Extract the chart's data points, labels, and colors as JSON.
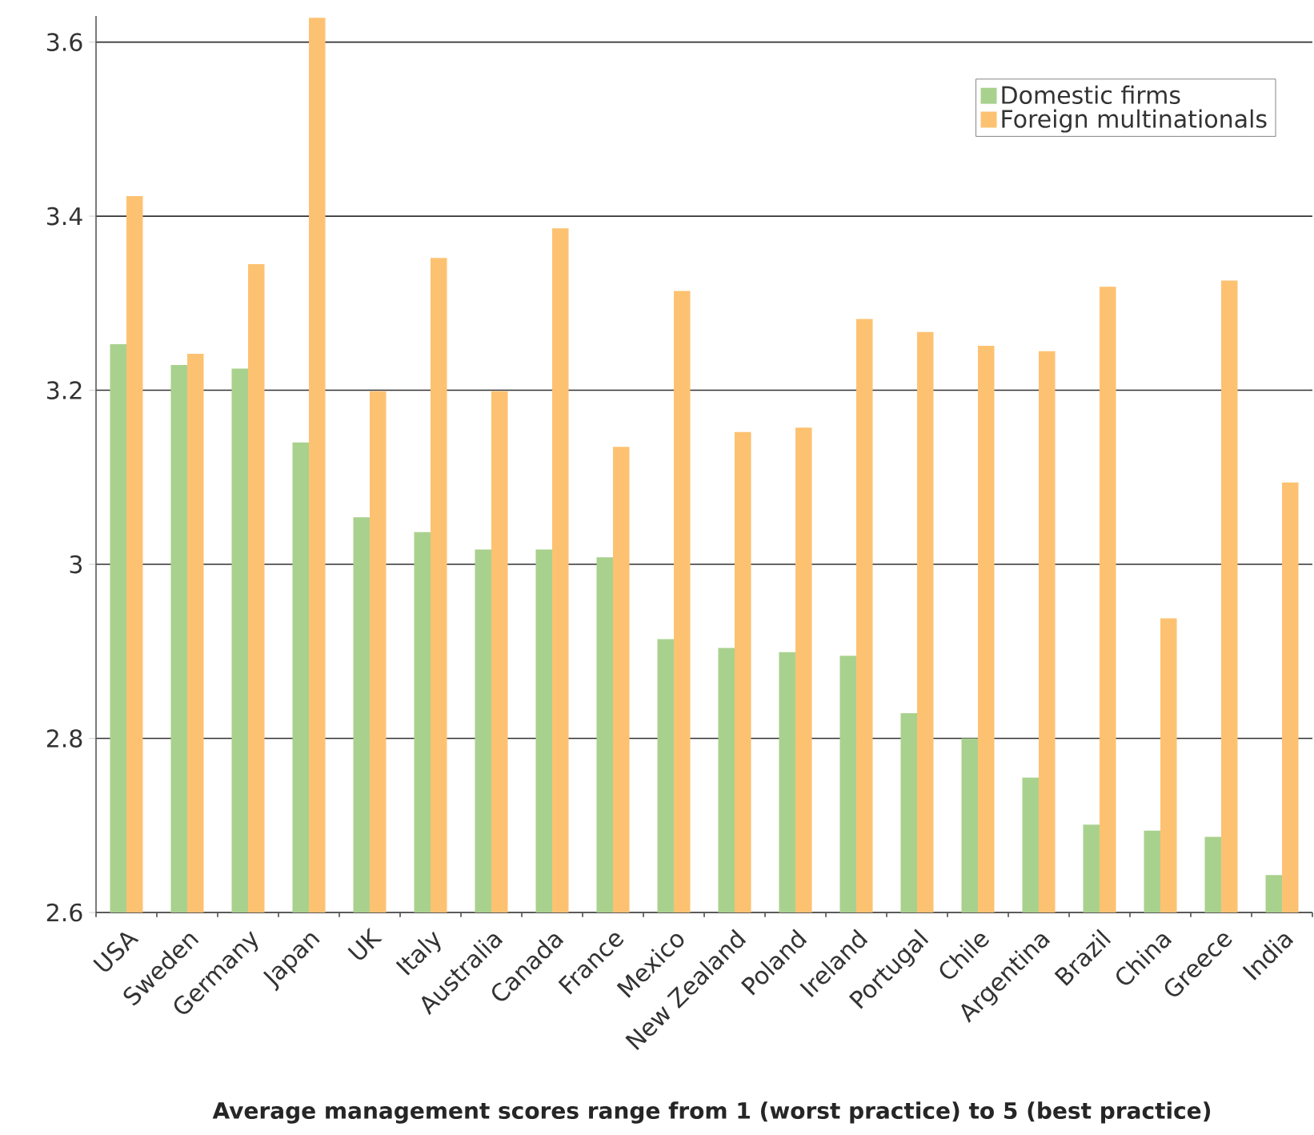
{
  "chart_data": {
    "type": "bar",
    "categories": [
      "USA",
      "Sweden",
      "Germany",
      "Japan",
      "UK",
      "Italy",
      "Australia",
      "Canada",
      "France",
      "Mexico",
      "New Zealand",
      "Poland",
      "Ireland",
      "Portugal",
      "Chile",
      "Argentina",
      "Brazil",
      "China",
      "Greece",
      "India"
    ],
    "series": [
      {
        "name": "Domestic firms",
        "color": "#a9d18e",
        "values": [
          3.253,
          3.229,
          3.225,
          3.14,
          3.054,
          3.037,
          3.017,
          3.017,
          3.008,
          2.914,
          2.904,
          2.899,
          2.895,
          2.829,
          2.8,
          2.755,
          2.701,
          2.694,
          2.687,
          2.643
        ]
      },
      {
        "name": "Foreign multinationals",
        "color": "#fdc271",
        "values": [
          3.423,
          3.242,
          3.345,
          3.628,
          3.199,
          3.352,
          3.199,
          3.386,
          3.135,
          3.314,
          3.152,
          3.157,
          3.282,
          3.267,
          3.251,
          3.245,
          3.319,
          2.938,
          3.326,
          3.094
        ]
      }
    ],
    "ylim": [
      2.6,
      3.63
    ],
    "yticks": [
      2.6,
      2.8,
      {
        "value": 3.0,
        "label": "3"
      },
      3.2,
      3.4,
      3.6
    ],
    "grid": "y",
    "legend": "top right",
    "annotations": [
      "Average management scores range from 1 (worst practice) to 5 (best practice)"
    ]
  }
}
